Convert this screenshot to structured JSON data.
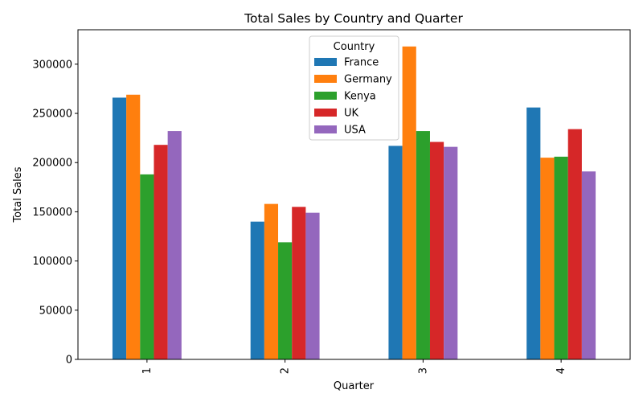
{
  "chart_data": {
    "type": "bar",
    "title": "Total Sales by Country and Quarter",
    "xlabel": "Quarter",
    "ylabel": "Total Sales",
    "categories": [
      "1",
      "2",
      "3",
      "4"
    ],
    "ylim": [
      0,
      335000
    ],
    "yticks": [
      0,
      50000,
      100000,
      150000,
      200000,
      250000,
      300000
    ],
    "ytick_labels": [
      "0",
      "50000",
      "100000",
      "150000",
      "200000",
      "250000",
      "300000"
    ],
    "grid": false,
    "legend": {
      "title": "Country",
      "position": "top-center"
    },
    "series": [
      {
        "name": "France",
        "color": "#1f77b4",
        "values": [
          266000,
          140000,
          217000,
          256000
        ]
      },
      {
        "name": "Germany",
        "color": "#ff7f0e",
        "values": [
          269000,
          158000,
          318000,
          205000
        ]
      },
      {
        "name": "Kenya",
        "color": "#2ca02c",
        "values": [
          188000,
          119000,
          232000,
          206000
        ]
      },
      {
        "name": "UK",
        "color": "#d62728",
        "values": [
          218000,
          155000,
          221000,
          234000
        ]
      },
      {
        "name": "USA",
        "color": "#9467bd",
        "values": [
          232000,
          149000,
          216000,
          191000
        ]
      }
    ]
  }
}
